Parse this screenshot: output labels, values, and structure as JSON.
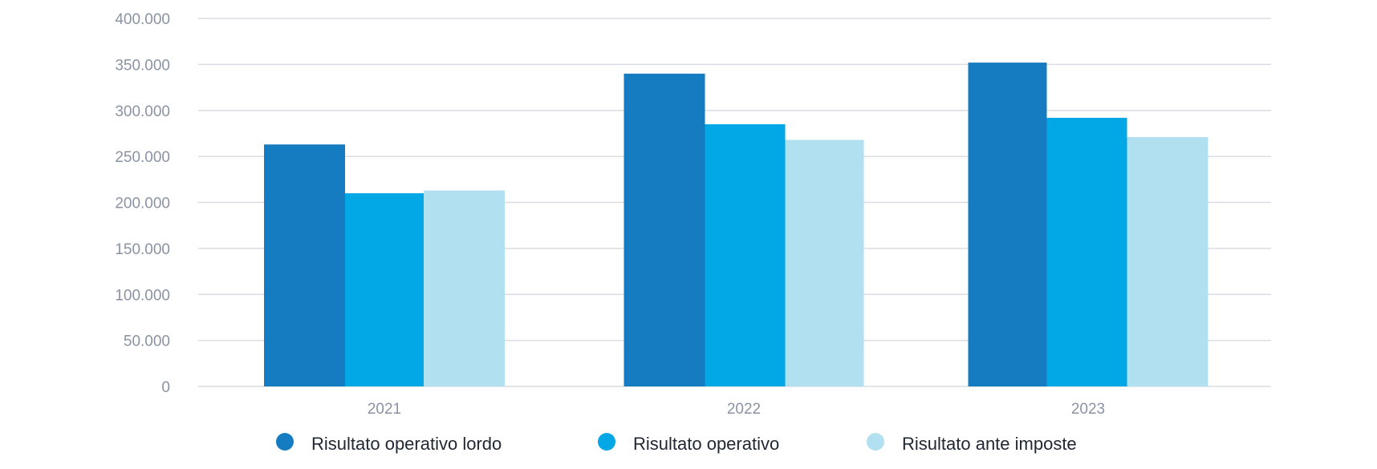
{
  "chart_data": {
    "type": "bar",
    "categories": [
      "2021",
      "2022",
      "2023"
    ],
    "series": [
      {
        "name": "Risultato operativo lordo",
        "color": "#167cc1",
        "values": [
          263000,
          340000,
          352000
        ]
      },
      {
        "name": "Risultato operativo",
        "color": "#02a8e6",
        "values": [
          210000,
          285000,
          292000
        ]
      },
      {
        "name": "Risultato ante imposte",
        "color": "#b1e0f1",
        "values": [
          213000,
          268000,
          271000
        ]
      }
    ],
    "ylim": [
      0,
      400000
    ],
    "yticks": [
      0,
      50000,
      100000,
      150000,
      200000,
      250000,
      300000,
      350000,
      400000
    ],
    "ytick_labels": [
      "0",
      "50.000",
      "100.000",
      "150.000",
      "200.000",
      "250.000",
      "300.000",
      "350.000",
      "400.000"
    ],
    "title": "",
    "xlabel": "",
    "ylabel": "",
    "grid": true,
    "legend_position": "bottom-center"
  }
}
